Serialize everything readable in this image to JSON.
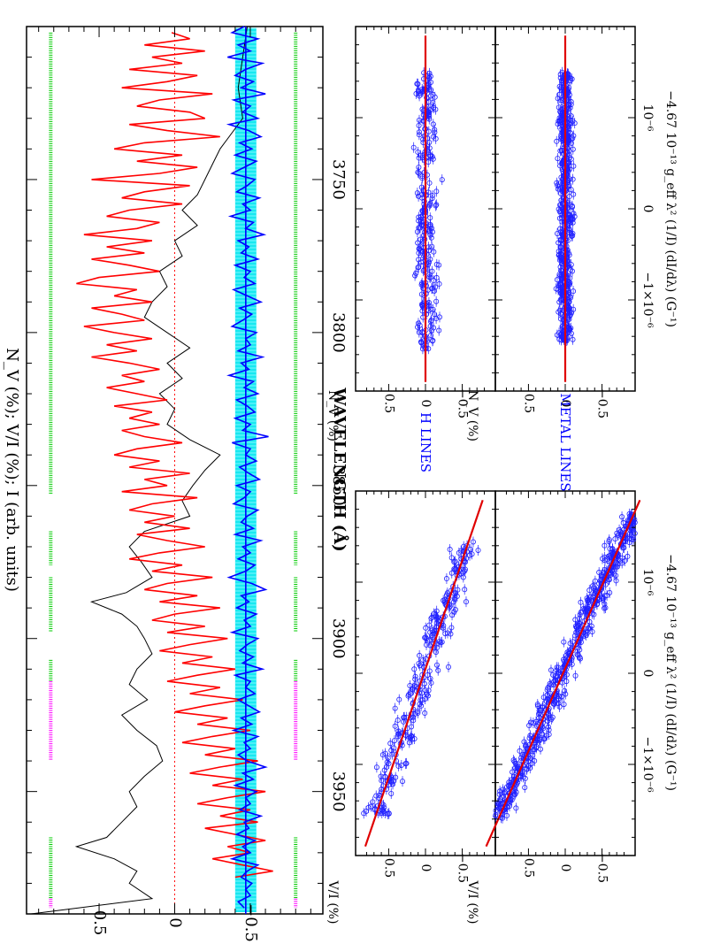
{
  "chart_data": [
    {
      "type": "line",
      "panel": "main-spectrum",
      "xlabel": "WAVELENGTH (Å)",
      "ylabel": "N_V (%); V/I (%); I (arb. units)",
      "x_ticks": [
        "3750",
        "3800",
        "3850",
        "3900",
        "3950"
      ],
      "x_tick_values": [
        3750,
        3800,
        3850,
        3900,
        3950
      ],
      "y_ticks": [
        "0.5",
        "0",
        "−0.5"
      ],
      "y_tick_values": [
        0.5,
        0,
        -0.5
      ],
      "xlim": [
        3700,
        3990
      ],
      "ylim": [
        -0.98,
        0.98
      ],
      "colors": {
        "stokes_v": "#ff0000",
        "null_n": "#0000ff",
        "intensity": "#000000",
        "error_band": "#00e5ee",
        "metal_mask": "#00cc00",
        "h_mask": "#ff00ff"
      },
      "series": [
        {
          "color": "#000000",
          "x": [
            3700,
            3710,
            3720,
            3730,
            3740,
            3745,
            3750,
            3755,
            3760,
            3765,
            3770,
            3775,
            3780,
            3785,
            3790,
            3795,
            3800,
            3805,
            3810,
            3815,
            3820,
            3825,
            3830,
            3835,
            3840,
            3845,
            3850,
            3855,
            3860,
            3865,
            3870,
            3875,
            3880,
            3885,
            3888,
            3892,
            3896,
            3900,
            3905,
            3910,
            3915,
            3920,
            3925,
            3930,
            3935,
            3940,
            3945,
            3950,
            3955,
            3960,
            3965,
            3968,
            3972,
            3976,
            3980,
            3985,
            3990
          ],
          "y": [
            -0.48,
            -0.45,
            -0.42,
            -0.45,
            -0.3,
            -0.25,
            -0.2,
            -0.15,
            -0.05,
            -0.15,
            0,
            -0.05,
            0.1,
            0.05,
            0.15,
            0.2,
            0.05,
            -0.1,
            0.05,
            -0.05,
            0.1,
            0.0,
            0.05,
            -0.1,
            -0.3,
            -0.2,
            -0.12,
            -0.05,
            -0.1,
            0.2,
            0.3,
            0.22,
            0.15,
            0.32,
            0.55,
            0.35,
            0.25,
            0.2,
            0.15,
            0.25,
            0.3,
            0.18,
            0.35,
            0.25,
            0.12,
            0.08,
            0.2,
            0.3,
            0.25,
            0.35,
            0.45,
            0.65,
            0.4,
            0.25,
            0.3,
            0.15,
            0.95
          ]
        }
      ],
      "v_signal": {
        "x_start": 3702,
        "x_step": 2,
        "values": [
          0.02,
          -0.1,
          0.2,
          -0.2,
          0.15,
          -0.05,
          0.3,
          -0.15,
          0.05,
          0.35,
          -0.25,
          0.1,
          0.25,
          -0.1,
          -0.2,
          0.3,
          0.05,
          -0.3,
          0.2,
          0.4,
          -0.05,
          0.25,
          -0.15,
          0.1,
          0.55,
          -0.1,
          0.2,
          0.35,
          -0.05,
          0.3,
          0.45,
          0.1,
          0.25,
          0.6,
          0.15,
          0.45,
          0.2,
          0.55,
          0.3,
          0.1,
          0.5,
          0.65,
          0.25,
          0.4,
          0.15,
          0.55,
          0.35,
          0.2,
          0.6,
          0.4,
          0.15,
          0.45,
          0.25,
          0.55,
          0.3,
          0.1,
          0.35,
          0.2,
          0.45,
          0.25,
          0.05,
          0.4,
          0.15,
          0.3,
          0.1,
          0.35,
          0.2,
          -0.05,
          0.25,
          0.4,
          0.1,
          0.3,
          -0.1,
          0.2,
          0.05,
          0.35,
          -0.15,
          0.15,
          0.3,
          0.0,
          0.2,
          -0.1,
          0.25,
          0.05,
          -0.2,
          0.1,
          0.3,
          -0.05,
          0.15,
          -0.25,
          0.05,
          0.2,
          -0.15,
          0.1,
          -0.3,
          0.0,
          0.15,
          -0.2,
          0.05,
          -0.35,
          -0.1,
          0.1,
          -0.25,
          -0.05,
          -0.4,
          -0.15,
          0.05,
          -0.3,
          -0.1,
          -0.45,
          -0.2,
          0.0,
          -0.35,
          -0.15,
          -0.5,
          -0.25,
          -0.05,
          -0.4,
          -0.2,
          -0.55,
          -0.3,
          -0.1,
          -0.45,
          -0.25,
          -0.6,
          -0.35,
          -0.15,
          -0.5,
          -0.3,
          -0.55,
          -0.2,
          -0.4,
          -0.6,
          -0.35,
          -0.5,
          -0.25,
          -0.45,
          -0.65,
          -0.4
        ]
      },
      "n_signal": {
        "x_start": 3700,
        "x_step": 2,
        "values": [
          -0.46,
          -0.38,
          -0.55,
          -0.42,
          -0.5,
          -0.35,
          -0.58,
          -0.47,
          -0.4,
          -0.52,
          -0.44,
          -0.6,
          -0.39,
          -0.5,
          -0.45,
          -0.55,
          -0.36,
          -0.49,
          -0.57,
          -0.43,
          -0.51,
          -0.4,
          -0.54,
          -0.46,
          -0.38,
          -0.53,
          -0.48,
          -0.41,
          -0.56,
          -0.45,
          -0.5,
          -0.37,
          -0.52,
          -0.47,
          -0.59,
          -0.42,
          -0.49,
          -0.44,
          -0.55,
          -0.4,
          -0.5,
          -0.46,
          -0.53,
          -0.39,
          -0.48,
          -0.57,
          -0.43,
          -0.51,
          -0.45,
          -0.38,
          -0.54,
          -0.47,
          -0.5,
          -0.42,
          -0.58,
          -0.44,
          -0.49,
          -0.36,
          -0.52,
          -0.46,
          -0.55,
          -0.41,
          -0.48,
          -0.53,
          -0.4,
          -0.5,
          -0.45,
          -0.62,
          -0.38,
          -0.5,
          -0.47,
          -0.54,
          -0.43,
          -0.49,
          -0.56,
          -0.41,
          -0.5,
          -0.46,
          -0.39,
          -0.55,
          -0.48,
          -0.44,
          -0.52,
          -0.4,
          -0.57,
          -0.45,
          -0.5,
          -0.42,
          -0.53,
          -0.47,
          -0.36,
          -0.51,
          -0.6,
          -0.44,
          -0.49,
          -0.41,
          -0.54,
          -0.46,
          -0.5,
          -0.38,
          -0.55,
          -0.48,
          -0.43,
          -0.52,
          -0.45,
          -0.58,
          -0.4,
          -0.5,
          -0.47,
          -0.53,
          -0.42,
          -0.49,
          -0.56,
          -0.44,
          -0.51,
          -0.39,
          -0.55,
          -0.46,
          -0.5,
          -0.42,
          -0.48,
          -0.6,
          -0.45,
          -0.52,
          -0.4,
          -0.54,
          -0.47,
          -0.5,
          -0.43,
          -0.57,
          -0.46,
          -0.49,
          -0.41,
          -0.53,
          -0.45,
          -0.5,
          -0.38,
          -0.55,
          -0.48,
          -0.44,
          -0.51,
          -0.47,
          -0.5,
          -0.42,
          -0.46
        ]
      },
      "error_band": {
        "center": -0.47,
        "half_width": 0.07
      },
      "mask": {
        "metal_y": -0.8,
        "h_y": -0.8,
        "metal_segments": [
          [
            3702,
            3853
          ],
          [
            3865,
            3876
          ],
          [
            3880,
            3898
          ],
          [
            3907,
            3914
          ],
          [
            3965,
            3985
          ]
        ],
        "h_segments": [
          [
            3914,
            3940
          ],
          [
            3985,
            3988
          ]
        ],
        "upper_metal_segments": [
          [
            3702,
            3853
          ],
          [
            3865,
            3876
          ],
          [
            3880,
            3898
          ],
          [
            3907,
            3914
          ],
          [
            3965,
            3985
          ]
        ],
        "upper_h_segments": [
          [
            3914,
            3940
          ],
          [
            3985,
            3988
          ]
        ],
        "upper_y": 0.82
      }
    },
    {
      "type": "scatter",
      "panel": "h-lines-v",
      "ylabel": "V/I (%)",
      "y_ticks": [
        "0.5",
        "0",
        "−0.5"
      ],
      "fit": {
        "slope": -0.42,
        "intercept": 0.02
      },
      "point_count": 260,
      "spread": 0.28,
      "x_extent": [
        -1.55,
        1.45
      ]
    },
    {
      "type": "scatter",
      "panel": "metal-lines-v",
      "ylabel": "V/I (%)",
      "y_ticks": [
        "0.5",
        "0",
        "−0.5"
      ],
      "fit": {
        "slope": -0.55,
        "intercept": 0.03
      },
      "point_count": 520,
      "spread": 0.22,
      "x_extent": [
        -1.6,
        1.75
      ]
    },
    {
      "type": "scatter",
      "panel": "h-lines-n",
      "ylabel": "N_V (%)",
      "y_ticks": [
        "0.5",
        "0",
        "−0.5"
      ],
      "fit": {
        "slope": 0.0,
        "intercept": 0.0
      },
      "point_count": 260,
      "spread": 0.2,
      "x_extent": [
        -1.55,
        1.5
      ]
    },
    {
      "type": "scatter",
      "panel": "metal-lines-n",
      "ylabel": "N_V (%)",
      "y_ticks": [
        "0.5",
        "0",
        "−0.5"
      ],
      "fit": {
        "slope": 0.0,
        "intercept": 0.0
      },
      "point_count": 520,
      "spread": 0.14,
      "x_extent": [
        -1.45,
        1.5
      ]
    }
  ],
  "scatter_axes": {
    "xlabel": "−4.67 10⁻¹³ g_eff λ² (1/I) (dI/dλ) (G⁻¹)",
    "x_ticks": [
      "−1×10⁻⁶",
      "0",
      "10⁻⁶"
    ]
  },
  "labels": {
    "h_lines": "H LINES",
    "metal_lines": "METAL LINES"
  }
}
